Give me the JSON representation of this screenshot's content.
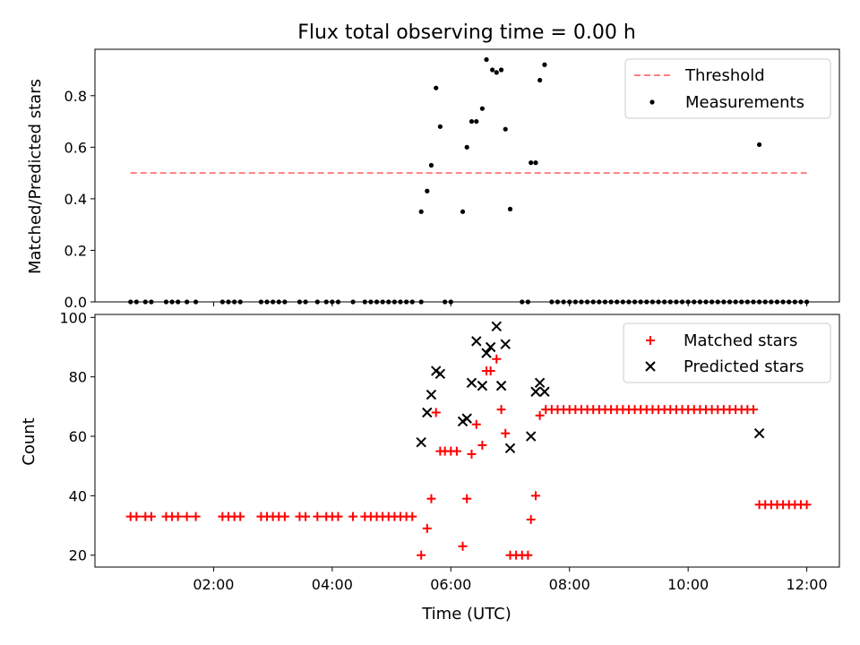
{
  "chart_data": [
    {
      "type": "scatter",
      "title": "Flux total observing time = 0.00 h",
      "xlabel": "",
      "ylabel": "Matched/Predicted stars",
      "ylim": [
        0,
        0.98
      ],
      "xlim": [
        0.0,
        12.55
      ],
      "y_ticks": [
        0.0,
        0.2,
        0.4,
        0.6,
        0.8
      ],
      "y_tick_labels": [
        "0.0",
        "0.2",
        "0.4",
        "0.6",
        "0.8"
      ],
      "grid": false,
      "legend_position": "top-right",
      "threshold": {
        "name": "Threshold",
        "y": 0.5,
        "x_range": [
          0.6,
          12.0
        ],
        "color": "#ff7f7f"
      },
      "series": [
        {
          "name": "Measurements",
          "color": "#000000",
          "points": [
            [
              0.6,
              0.0
            ],
            [
              0.7,
              0.0
            ],
            [
              0.85,
              0.0
            ],
            [
              0.95,
              0.0
            ],
            [
              1.2,
              0.0
            ],
            [
              1.3,
              0.0
            ],
            [
              1.4,
              0.0
            ],
            [
              1.55,
              0.0
            ],
            [
              1.7,
              0.0
            ],
            [
              2.15,
              0.0
            ],
            [
              2.25,
              0.0
            ],
            [
              2.35,
              0.0
            ],
            [
              2.45,
              0.0
            ],
            [
              2.8,
              0.0
            ],
            [
              2.9,
              0.0
            ],
            [
              3.0,
              0.0
            ],
            [
              3.1,
              0.0
            ],
            [
              3.2,
              0.0
            ],
            [
              3.45,
              0.0
            ],
            [
              3.55,
              0.0
            ],
            [
              3.75,
              0.0
            ],
            [
              3.9,
              0.0
            ],
            [
              4.0,
              0.0
            ],
            [
              4.1,
              0.0
            ],
            [
              4.35,
              0.0
            ],
            [
              4.55,
              0.0
            ],
            [
              4.65,
              0.0
            ],
            [
              4.75,
              0.0
            ],
            [
              4.85,
              0.0
            ],
            [
              4.95,
              0.0
            ],
            [
              5.05,
              0.0
            ],
            [
              5.15,
              0.0
            ],
            [
              5.25,
              0.0
            ],
            [
              5.35,
              0.0
            ],
            [
              5.5,
              0.0
            ],
            [
              5.9,
              0.0
            ],
            [
              6.0,
              0.0
            ],
            [
              7.2,
              0.0
            ],
            [
              7.3,
              0.0
            ],
            [
              7.7,
              0.0
            ],
            [
              7.8,
              0.0
            ],
            [
              7.9,
              0.0
            ],
            [
              8.0,
              0.0
            ],
            [
              8.1,
              0.0
            ],
            [
              8.2,
              0.0
            ],
            [
              8.3,
              0.0
            ],
            [
              8.4,
              0.0
            ],
            [
              8.5,
              0.0
            ],
            [
              8.6,
              0.0
            ],
            [
              8.7,
              0.0
            ],
            [
              8.8,
              0.0
            ],
            [
              8.9,
              0.0
            ],
            [
              9.0,
              0.0
            ],
            [
              9.1,
              0.0
            ],
            [
              9.2,
              0.0
            ],
            [
              9.3,
              0.0
            ],
            [
              9.4,
              0.0
            ],
            [
              9.5,
              0.0
            ],
            [
              9.6,
              0.0
            ],
            [
              9.7,
              0.0
            ],
            [
              9.8,
              0.0
            ],
            [
              9.9,
              0.0
            ],
            [
              10.0,
              0.0
            ],
            [
              10.1,
              0.0
            ],
            [
              10.2,
              0.0
            ],
            [
              10.3,
              0.0
            ],
            [
              10.4,
              0.0
            ],
            [
              10.5,
              0.0
            ],
            [
              10.6,
              0.0
            ],
            [
              10.7,
              0.0
            ],
            [
              10.8,
              0.0
            ],
            [
              10.9,
              0.0
            ],
            [
              11.0,
              0.0
            ],
            [
              11.1,
              0.0
            ],
            [
              11.2,
              0.0
            ],
            [
              11.3,
              0.0
            ],
            [
              11.4,
              0.0
            ],
            [
              11.5,
              0.0
            ],
            [
              11.6,
              0.0
            ],
            [
              11.7,
              0.0
            ],
            [
              11.8,
              0.0
            ],
            [
              11.9,
              0.0
            ],
            [
              12.0,
              0.0
            ],
            [
              5.5,
              0.35
            ],
            [
              5.6,
              0.43
            ],
            [
              5.67,
              0.53
            ],
            [
              5.75,
              0.83
            ],
            [
              5.82,
              0.68
            ],
            [
              6.2,
              0.35
            ],
            [
              6.27,
              0.6
            ],
            [
              6.35,
              0.7
            ],
            [
              6.43,
              0.7
            ],
            [
              6.53,
              0.75
            ],
            [
              6.6,
              0.94
            ],
            [
              6.7,
              0.9
            ],
            [
              6.77,
              0.89
            ],
            [
              6.85,
              0.9
            ],
            [
              6.92,
              0.67
            ],
            [
              7.0,
              0.36
            ],
            [
              7.35,
              0.54
            ],
            [
              7.43,
              0.54
            ],
            [
              7.5,
              0.86
            ],
            [
              7.58,
              0.92
            ],
            [
              11.2,
              0.61
            ]
          ]
        }
      ]
    },
    {
      "type": "scatter",
      "title": "",
      "xlabel": "Time (UTC)",
      "ylabel": "Count",
      "ylim": [
        16,
        101
      ],
      "xlim": [
        0.0,
        12.55
      ],
      "y_ticks": [
        20,
        40,
        60,
        80,
        100
      ],
      "y_tick_labels": [
        "20",
        "40",
        "60",
        "80",
        "100"
      ],
      "x_ticks": [
        2,
        4,
        6,
        8,
        10,
        12
      ],
      "x_tick_labels": [
        "02:00",
        "04:00",
        "06:00",
        "08:00",
        "10:00",
        "12:00"
      ],
      "grid": false,
      "legend_position": "top-right",
      "series": [
        {
          "name": "Matched stars",
          "marker": "plus",
          "color": "#ff0000",
          "points": [
            [
              0.6,
              33
            ],
            [
              0.7,
              33
            ],
            [
              0.85,
              33
            ],
            [
              0.95,
              33
            ],
            [
              1.2,
              33
            ],
            [
              1.3,
              33
            ],
            [
              1.4,
              33
            ],
            [
              1.55,
              33
            ],
            [
              1.7,
              33
            ],
            [
              2.15,
              33
            ],
            [
              2.25,
              33
            ],
            [
              2.35,
              33
            ],
            [
              2.45,
              33
            ],
            [
              2.8,
              33
            ],
            [
              2.9,
              33
            ],
            [
              3.0,
              33
            ],
            [
              3.1,
              33
            ],
            [
              3.2,
              33
            ],
            [
              3.45,
              33
            ],
            [
              3.55,
              33
            ],
            [
              3.75,
              33
            ],
            [
              3.9,
              33
            ],
            [
              4.0,
              33
            ],
            [
              4.1,
              33
            ],
            [
              4.35,
              33
            ],
            [
              4.55,
              33
            ],
            [
              4.65,
              33
            ],
            [
              4.75,
              33
            ],
            [
              4.85,
              33
            ],
            [
              4.95,
              33
            ],
            [
              5.05,
              33
            ],
            [
              5.15,
              33
            ],
            [
              5.25,
              33
            ],
            [
              5.35,
              33
            ],
            [
              5.5,
              20
            ],
            [
              5.6,
              29
            ],
            [
              5.67,
              39
            ],
            [
              5.75,
              68
            ],
            [
              5.82,
              55
            ],
            [
              5.9,
              55
            ],
            [
              6.0,
              55
            ],
            [
              6.1,
              55
            ],
            [
              6.2,
              23
            ],
            [
              6.27,
              39
            ],
            [
              6.35,
              54
            ],
            [
              6.43,
              64
            ],
            [
              6.53,
              57
            ],
            [
              6.6,
              82
            ],
            [
              6.67,
              82
            ],
            [
              6.77,
              86
            ],
            [
              6.85,
              69
            ],
            [
              6.92,
              61
            ],
            [
              7.0,
              20
            ],
            [
              7.1,
              20
            ],
            [
              7.2,
              20
            ],
            [
              7.3,
              20
            ],
            [
              7.35,
              32
            ],
            [
              7.43,
              40
            ],
            [
              7.5,
              67
            ],
            [
              7.6,
              69
            ],
            [
              7.7,
              69
            ],
            [
              7.8,
              69
            ],
            [
              7.9,
              69
            ],
            [
              8.0,
              69
            ],
            [
              8.1,
              69
            ],
            [
              8.2,
              69
            ],
            [
              8.3,
              69
            ],
            [
              8.4,
              69
            ],
            [
              8.5,
              69
            ],
            [
              8.6,
              69
            ],
            [
              8.7,
              69
            ],
            [
              8.8,
              69
            ],
            [
              8.9,
              69
            ],
            [
              9.0,
              69
            ],
            [
              9.1,
              69
            ],
            [
              9.2,
              69
            ],
            [
              9.3,
              69
            ],
            [
              9.4,
              69
            ],
            [
              9.5,
              69
            ],
            [
              9.6,
              69
            ],
            [
              9.7,
              69
            ],
            [
              9.8,
              69
            ],
            [
              9.9,
              69
            ],
            [
              10.0,
              69
            ],
            [
              10.1,
              69
            ],
            [
              10.2,
              69
            ],
            [
              10.3,
              69
            ],
            [
              10.4,
              69
            ],
            [
              10.5,
              69
            ],
            [
              10.6,
              69
            ],
            [
              10.7,
              69
            ],
            [
              10.8,
              69
            ],
            [
              10.9,
              69
            ],
            [
              11.0,
              69
            ],
            [
              11.1,
              69
            ],
            [
              11.2,
              37
            ],
            [
              11.3,
              37
            ],
            [
              11.4,
              37
            ],
            [
              11.5,
              37
            ],
            [
              11.6,
              37
            ],
            [
              11.7,
              37
            ],
            [
              11.8,
              37
            ],
            [
              11.9,
              37
            ],
            [
              12.0,
              37
            ]
          ]
        },
        {
          "name": "Predicted stars",
          "marker": "x",
          "color": "#000000",
          "points": [
            [
              5.5,
              58
            ],
            [
              5.6,
              68
            ],
            [
              5.67,
              74
            ],
            [
              5.75,
              82
            ],
            [
              5.82,
              81
            ],
            [
              6.2,
              65
            ],
            [
              6.27,
              66
            ],
            [
              6.35,
              78
            ],
            [
              6.43,
              92
            ],
            [
              6.53,
              77
            ],
            [
              6.6,
              88
            ],
            [
              6.67,
              90
            ],
            [
              6.77,
              97
            ],
            [
              6.85,
              77
            ],
            [
              6.92,
              91
            ],
            [
              7.0,
              56
            ],
            [
              7.35,
              60
            ],
            [
              7.43,
              75
            ],
            [
              7.5,
              78
            ],
            [
              7.58,
              75
            ],
            [
              11.2,
              61
            ]
          ]
        }
      ]
    }
  ]
}
